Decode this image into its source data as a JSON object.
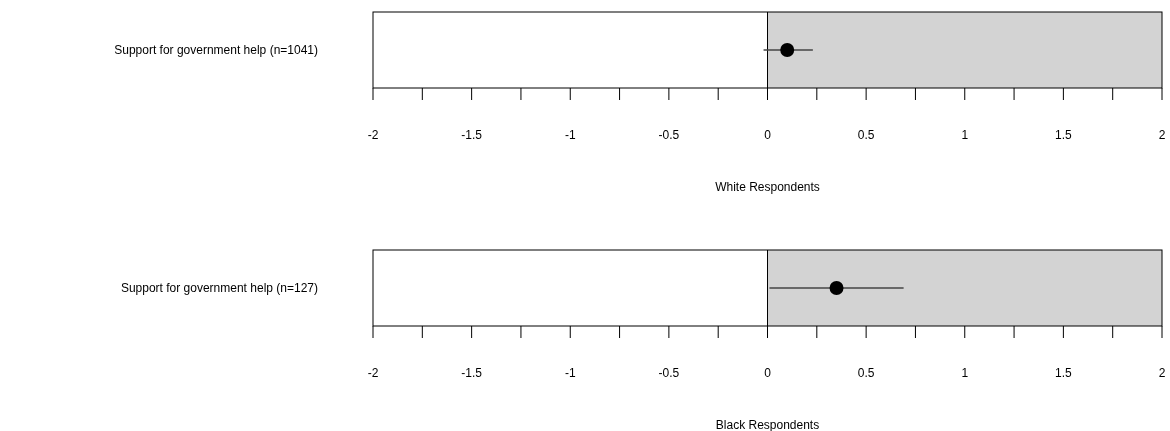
{
  "chart_data": [
    {
      "type": "scatter",
      "orientation": "horizontal",
      "categories": [
        "Support for government help (n=1041)"
      ],
      "values": [
        0.1
      ],
      "errors": [
        [
          -0.02,
          0.23
        ]
      ],
      "color": "#000000",
      "marker": "circle",
      "xlabel": "White Respondents",
      "xlim": [
        -2,
        2
      ],
      "xticks": [
        -2,
        {
          "value": -1.75,
          "label": null
        },
        -1.5,
        {
          "value": -1.25,
          "label": null
        },
        -1,
        {
          "value": -0.75,
          "label": null
        },
        -0.5,
        {
          "value": -0.25,
          "label": null
        },
        0,
        {
          "value": 0.25,
          "label": null
        },
        0.5,
        {
          "value": 0.75,
          "label": null
        },
        1,
        {
          "value": 1.25,
          "label": null
        },
        1.5,
        {
          "value": 1.75,
          "label": null
        },
        2
      ],
      "bands": [
        {
          "axis": "x",
          "from": 0,
          "to": 2,
          "color": "#d3d3d3"
        }
      ]
    },
    {
      "type": "scatter",
      "orientation": "horizontal",
      "categories": [
        "Support for government help (n=127)"
      ],
      "values": [
        0.35
      ],
      "errors": [
        [
          0.01,
          0.69
        ]
      ],
      "color": "#000000",
      "marker": "circle",
      "xlabel": "Black Respondents",
      "xlim": [
        -2,
        2
      ],
      "xticks": [
        -2,
        {
          "value": -1.75,
          "label": null
        },
        -1.5,
        {
          "value": -1.25,
          "label": null
        },
        -1,
        {
          "value": -0.75,
          "label": null
        },
        -0.5,
        {
          "value": -0.25,
          "label": null
        },
        0,
        {
          "value": 0.25,
          "label": null
        },
        0.5,
        {
          "value": 0.75,
          "label": null
        },
        1,
        {
          "value": 1.25,
          "label": null
        },
        1.5,
        {
          "value": 1.75,
          "label": null
        },
        2
      ],
      "bands": [
        {
          "axis": "x",
          "from": 0,
          "to": 2,
          "color": "#d3d3d3"
        }
      ]
    }
  ]
}
